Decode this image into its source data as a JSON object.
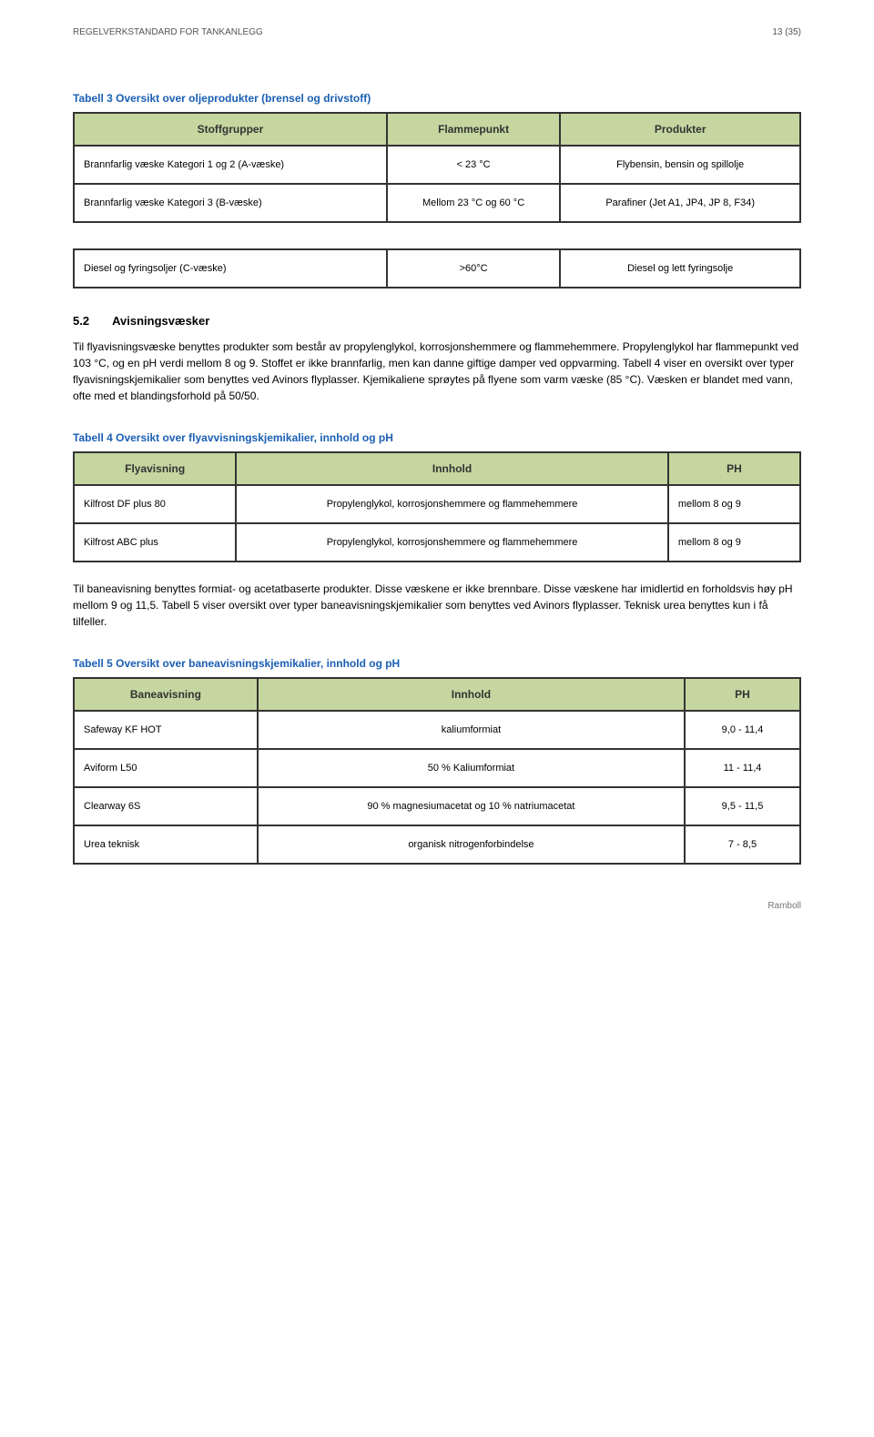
{
  "header": {
    "left": "REGELVERKSTANDARD FOR TANKANLEGG",
    "right": "13 (35)"
  },
  "table3": {
    "caption": "Tabell 3 Oversikt over oljeprodukter (brensel og drivstoff)",
    "columns": [
      "Stoffgrupper",
      "Flammepunkt",
      "Produkter"
    ],
    "rows": [
      [
        "Brannfarlig væske Kategori 1 og 2\n(A-væske)",
        "< 23 °C",
        "Flybensin, bensin og spillolje"
      ],
      [
        "Brannfarlig væske Kategori 3\n(B-væske)",
        "Mellom 23 °C og 60 °C",
        "Parafiner (Jet A1, JP4, JP 8, F34)"
      ]
    ],
    "extra_row": [
      "Diesel og fyringsoljer (C-væske)",
      ">60°C",
      "Diesel og lett fyringsolje"
    ]
  },
  "section52": {
    "num": "5.2",
    "title": "Avisningsvæsker",
    "para1": "Til flyavisningsvæske benyttes produkter som består av propylenglykol, korrosjonshemmere og flammehemmere. Propylenglykol har flammepunkt ved 103 °C, og en pH verdi mellom 8 og 9. Stoffet er ikke brannfarlig, men kan danne giftige damper ved oppvarming. Tabell 4 viser en oversikt over typer flyavisningskjemikalier som benyttes ved Avinors flyplasser. Kjemikaliene sprøytes på flyene som varm væske (85 °C). Væsken er blandet med vann, ofte med et blandingsforhold på 50/50."
  },
  "table4": {
    "caption": "Tabell 4 Oversikt over flyavvisningskjemikalier, innhold og pH",
    "columns": [
      "Flyavisning",
      "Innhold",
      "PH"
    ],
    "rows": [
      [
        "Kilfrost DF plus 80",
        "Propylenglykol, korrosjonshemmere og flammehemmere",
        "mellom 8 og 9"
      ],
      [
        "Kilfrost ABC plus",
        "Propylenglykol, korrosjonshemmere og flammehemmere",
        "mellom 8 og 9"
      ]
    ]
  },
  "mid_para": "Til baneavisning benyttes formiat- og acetatbaserte produkter. Disse væskene er ikke brennbare. Disse væskene har imidlertid en forholdsvis høy pH mellom 9 og 11,5. Tabell 5 viser oversikt over typer baneavisningskjemikalier som benyttes ved Avinors flyplasser. Teknisk urea benyttes kun i få tilfeller.",
  "table5": {
    "caption": "Tabell 5 Oversikt over baneavisningskjemikalier, innhold og pH",
    "columns": [
      "Baneavisning",
      "Innhold",
      "PH"
    ],
    "rows": [
      [
        "Safeway KF HOT",
        "kaliumformiat",
        "9,0 - 11,4"
      ],
      [
        "Aviform L50",
        "50 % Kaliumformiat",
        "11 - 11,4"
      ],
      [
        "Clearway 6S",
        "90 % magnesiumacetat og 10 % natriumacetat",
        "9,5 - 11,5"
      ],
      [
        "Urea teknisk",
        "organisk nitrogenforbindelse",
        "7 - 8,5"
      ]
    ]
  },
  "footer": "Ramboll"
}
